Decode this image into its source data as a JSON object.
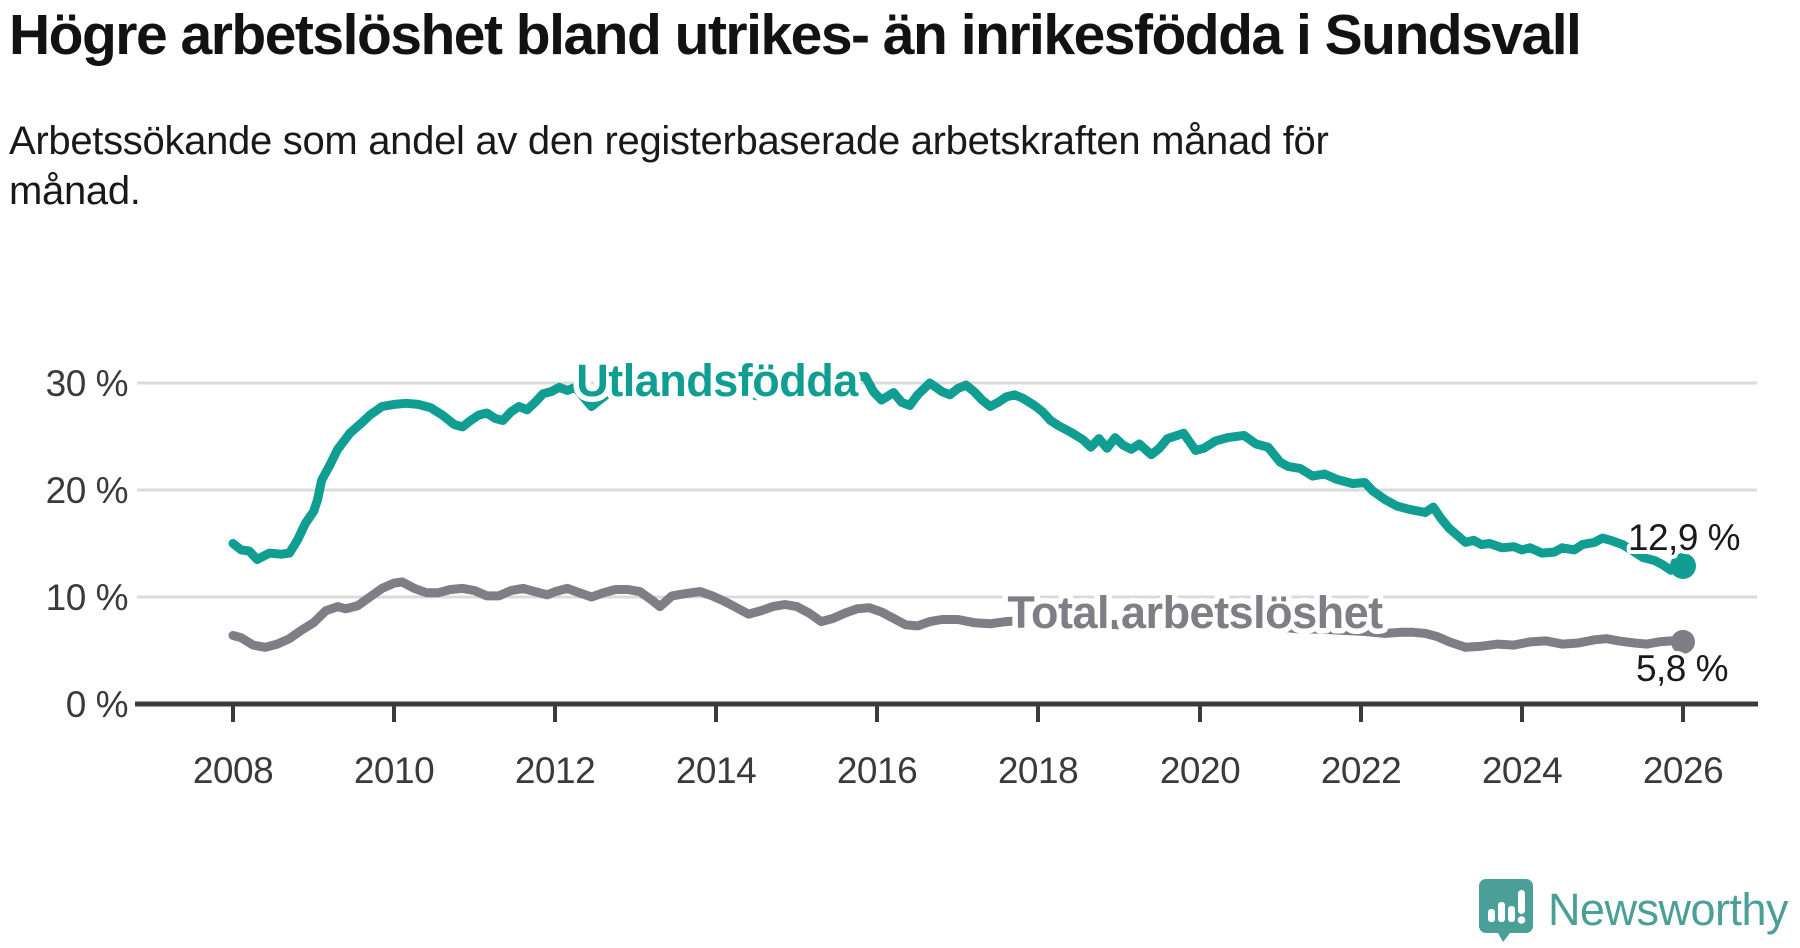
{
  "title": "Högre arbetslöshet bland utrikes- än inrikesfödda i Sundsvall",
  "subtitle": "Arbetssökande som andel av den registerbaserade arbetskraften månad för månad.",
  "branding": {
    "logo_text": "Newsworthy",
    "logo_icon": "speech-bubble-bar-chart-icon",
    "logo_color": "#4aa098"
  },
  "chart_data": {
    "type": "line",
    "title": "",
    "xlabel": "",
    "ylabel": "",
    "grid": "horizontal-only",
    "background": "#ffffff",
    "gridline_color": "#dbdbdb",
    "axis_color": "#3b3b3b",
    "xlim": [
      2006.8,
      2026.9
    ],
    "ylim": [
      0,
      33
    ],
    "x_ticks": [
      "2008",
      "2010",
      "2012",
      "2014",
      "2016",
      "2018",
      "2020",
      "2022",
      "2024",
      "2026"
    ],
    "x_tick_values": [
      2008,
      2010,
      2012,
      2014,
      2016,
      2018,
      2020,
      2022,
      2024,
      2026
    ],
    "y_ticks": [
      {
        "value": 0,
        "label": "0 %"
      },
      {
        "value": 10,
        "label": "10 %"
      },
      {
        "value": 20,
        "label": "20 %"
      },
      {
        "value": 30,
        "label": "30 %"
      }
    ],
    "unit": "%",
    "series": [
      {
        "name": "Utlandsfödda",
        "color": "#109d92",
        "end_value": 12.9,
        "end_label": "12,9 %",
        "points": [
          [
            2008.0,
            15.0
          ],
          [
            2008.1,
            14.4
          ],
          [
            2008.2,
            14.3
          ],
          [
            2008.3,
            13.5
          ],
          [
            2008.45,
            14.1
          ],
          [
            2008.6,
            14.0
          ],
          [
            2008.7,
            14.1
          ],
          [
            2008.8,
            15.3
          ],
          [
            2008.9,
            16.9
          ],
          [
            2009.0,
            18.0
          ],
          [
            2009.05,
            19.1
          ],
          [
            2009.1,
            20.9
          ],
          [
            2009.2,
            22.3
          ],
          [
            2009.3,
            23.8
          ],
          [
            2009.45,
            25.3
          ],
          [
            2009.6,
            26.3
          ],
          [
            2009.7,
            27.0
          ],
          [
            2009.85,
            27.8
          ],
          [
            2010.0,
            28.0
          ],
          [
            2010.15,
            28.1
          ],
          [
            2010.3,
            28.0
          ],
          [
            2010.45,
            27.7
          ],
          [
            2010.6,
            27.0
          ],
          [
            2010.75,
            26.1
          ],
          [
            2010.85,
            25.9
          ],
          [
            2010.95,
            26.5
          ],
          [
            2011.05,
            27.0
          ],
          [
            2011.15,
            27.2
          ],
          [
            2011.25,
            26.7
          ],
          [
            2011.35,
            26.5
          ],
          [
            2011.45,
            27.3
          ],
          [
            2011.55,
            27.8
          ],
          [
            2011.65,
            27.5
          ],
          [
            2011.75,
            28.2
          ],
          [
            2011.85,
            29.0
          ],
          [
            2011.95,
            29.2
          ],
          [
            2012.05,
            29.6
          ],
          [
            2012.15,
            29.3
          ],
          [
            2012.25,
            29.6
          ],
          [
            2012.35,
            28.7
          ],
          [
            2012.45,
            27.8
          ],
          [
            2012.55,
            28.4
          ],
          [
            2012.7,
            29.3
          ],
          [
            2012.85,
            29.8
          ],
          [
            2013.0,
            29.5
          ],
          [
            2013.15,
            29.9
          ],
          [
            2013.3,
            30.3
          ],
          [
            2013.45,
            29.8
          ],
          [
            2013.6,
            29.3
          ],
          [
            2013.75,
            29.0
          ],
          [
            2013.9,
            29.4
          ],
          [
            2014.05,
            29.7
          ],
          [
            2014.2,
            29.5
          ],
          [
            2014.35,
            29.1
          ],
          [
            2014.5,
            28.8
          ],
          [
            2014.65,
            29.3
          ],
          [
            2014.8,
            29.8
          ],
          [
            2014.95,
            29.5
          ],
          [
            2015.1,
            29.9
          ],
          [
            2015.25,
            30.1
          ],
          [
            2015.4,
            30.3
          ],
          [
            2015.55,
            30.5
          ],
          [
            2015.7,
            30.6
          ],
          [
            2015.85,
            30.6
          ],
          [
            2015.95,
            29.2
          ],
          [
            2016.05,
            28.4
          ],
          [
            2016.2,
            29.1
          ],
          [
            2016.3,
            28.2
          ],
          [
            2016.4,
            27.9
          ],
          [
            2016.5,
            28.9
          ],
          [
            2016.65,
            30.0
          ],
          [
            2016.8,
            29.2
          ],
          [
            2016.9,
            28.9
          ],
          [
            2017.0,
            29.5
          ],
          [
            2017.1,
            29.8
          ],
          [
            2017.2,
            29.2
          ],
          [
            2017.3,
            28.4
          ],
          [
            2017.4,
            27.8
          ],
          [
            2017.5,
            28.2
          ],
          [
            2017.6,
            28.7
          ],
          [
            2017.7,
            28.9
          ],
          [
            2017.8,
            28.6
          ],
          [
            2017.95,
            27.9
          ],
          [
            2018.05,
            27.3
          ],
          [
            2018.15,
            26.5
          ],
          [
            2018.25,
            26.0
          ],
          [
            2018.4,
            25.4
          ],
          [
            2018.55,
            24.7
          ],
          [
            2018.65,
            24.0
          ],
          [
            2018.75,
            24.8
          ],
          [
            2018.85,
            23.9
          ],
          [
            2018.95,
            24.9
          ],
          [
            2019.05,
            24.2
          ],
          [
            2019.15,
            23.8
          ],
          [
            2019.25,
            24.3
          ],
          [
            2019.4,
            23.3
          ],
          [
            2019.5,
            23.9
          ],
          [
            2019.6,
            24.8
          ],
          [
            2019.8,
            25.3
          ],
          [
            2019.95,
            23.7
          ],
          [
            2020.05,
            23.9
          ],
          [
            2020.2,
            24.6
          ],
          [
            2020.35,
            24.9
          ],
          [
            2020.55,
            25.1
          ],
          [
            2020.7,
            24.3
          ],
          [
            2020.85,
            24.0
          ],
          [
            2021.0,
            22.6
          ],
          [
            2021.1,
            22.2
          ],
          [
            2021.25,
            22.0
          ],
          [
            2021.4,
            21.3
          ],
          [
            2021.55,
            21.5
          ],
          [
            2021.7,
            21.0
          ],
          [
            2021.9,
            20.6
          ],
          [
            2022.05,
            20.7
          ],
          [
            2022.15,
            19.9
          ],
          [
            2022.3,
            19.1
          ],
          [
            2022.45,
            18.5
          ],
          [
            2022.6,
            18.2
          ],
          [
            2022.8,
            17.9
          ],
          [
            2022.9,
            18.4
          ],
          [
            2023.0,
            17.3
          ],
          [
            2023.1,
            16.4
          ],
          [
            2023.3,
            15.1
          ],
          [
            2023.4,
            15.3
          ],
          [
            2023.5,
            14.9
          ],
          [
            2023.6,
            15.0
          ],
          [
            2023.75,
            14.6
          ],
          [
            2023.9,
            14.7
          ],
          [
            2024.0,
            14.4
          ],
          [
            2024.1,
            14.6
          ],
          [
            2024.25,
            14.1
          ],
          [
            2024.4,
            14.2
          ],
          [
            2024.5,
            14.6
          ],
          [
            2024.65,
            14.4
          ],
          [
            2024.75,
            14.9
          ],
          [
            2024.9,
            15.1
          ],
          [
            2025.0,
            15.5
          ],
          [
            2025.1,
            15.3
          ],
          [
            2025.25,
            14.9
          ],
          [
            2025.4,
            14.2
          ],
          [
            2025.5,
            13.7
          ],
          [
            2025.65,
            13.4
          ],
          [
            2025.75,
            13.0
          ],
          [
            2025.85,
            12.5
          ],
          [
            2026.0,
            12.9
          ]
        ]
      },
      {
        "name": "Total arbetslöshet",
        "color": "#7e7e84",
        "end_value": 5.8,
        "end_label": "5,8 %",
        "points": [
          [
            2008.0,
            6.4
          ],
          [
            2008.1,
            6.2
          ],
          [
            2008.25,
            5.5
          ],
          [
            2008.4,
            5.3
          ],
          [
            2008.55,
            5.6
          ],
          [
            2008.7,
            6.1
          ],
          [
            2008.85,
            6.9
          ],
          [
            2009.0,
            7.6
          ],
          [
            2009.15,
            8.7
          ],
          [
            2009.3,
            9.1
          ],
          [
            2009.4,
            8.9
          ],
          [
            2009.55,
            9.2
          ],
          [
            2009.7,
            10.0
          ],
          [
            2009.85,
            10.8
          ],
          [
            2010.0,
            11.3
          ],
          [
            2010.1,
            11.4
          ],
          [
            2010.25,
            10.8
          ],
          [
            2010.4,
            10.4
          ],
          [
            2010.55,
            10.4
          ],
          [
            2010.7,
            10.7
          ],
          [
            2010.85,
            10.8
          ],
          [
            2011.0,
            10.6
          ],
          [
            2011.15,
            10.1
          ],
          [
            2011.3,
            10.1
          ],
          [
            2011.45,
            10.6
          ],
          [
            2011.6,
            10.8
          ],
          [
            2011.75,
            10.5
          ],
          [
            2011.9,
            10.2
          ],
          [
            2012.0,
            10.5
          ],
          [
            2012.15,
            10.8
          ],
          [
            2012.3,
            10.4
          ],
          [
            2012.45,
            10.0
          ],
          [
            2012.6,
            10.4
          ],
          [
            2012.75,
            10.7
          ],
          [
            2012.9,
            10.7
          ],
          [
            2013.05,
            10.5
          ],
          [
            2013.2,
            9.7
          ],
          [
            2013.3,
            9.1
          ],
          [
            2013.45,
            10.1
          ],
          [
            2013.6,
            10.3
          ],
          [
            2013.8,
            10.5
          ],
          [
            2013.95,
            10.1
          ],
          [
            2014.1,
            9.6
          ],
          [
            2014.25,
            9.0
          ],
          [
            2014.4,
            8.4
          ],
          [
            2014.55,
            8.7
          ],
          [
            2014.7,
            9.1
          ],
          [
            2014.85,
            9.3
          ],
          [
            2015.0,
            9.1
          ],
          [
            2015.15,
            8.5
          ],
          [
            2015.3,
            7.7
          ],
          [
            2015.45,
            8.0
          ],
          [
            2015.6,
            8.5
          ],
          [
            2015.75,
            8.9
          ],
          [
            2015.9,
            9.0
          ],
          [
            2016.05,
            8.6
          ],
          [
            2016.2,
            8.0
          ],
          [
            2016.35,
            7.4
          ],
          [
            2016.5,
            7.3
          ],
          [
            2016.65,
            7.7
          ],
          [
            2016.8,
            7.9
          ],
          [
            2017.0,
            7.9
          ],
          [
            2017.2,
            7.6
          ],
          [
            2017.4,
            7.5
          ],
          [
            2017.6,
            7.7
          ],
          [
            2017.8,
            7.8
          ],
          [
            2018.0,
            7.6
          ],
          [
            2018.25,
            7.4
          ],
          [
            2018.5,
            7.3
          ],
          [
            2018.75,
            7.5
          ],
          [
            2019.0,
            7.4
          ],
          [
            2019.25,
            7.2
          ],
          [
            2019.5,
            7.3
          ],
          [
            2019.75,
            7.4
          ],
          [
            2020.0,
            7.6
          ],
          [
            2020.25,
            8.1
          ],
          [
            2020.4,
            7.9
          ],
          [
            2020.6,
            7.6
          ],
          [
            2020.8,
            7.3
          ],
          [
            2021.0,
            7.2
          ],
          [
            2021.25,
            7.0
          ],
          [
            2021.5,
            7.0
          ],
          [
            2021.75,
            6.9
          ],
          [
            2022.0,
            6.8
          ],
          [
            2022.15,
            6.7
          ],
          [
            2022.3,
            6.6
          ],
          [
            2022.5,
            6.7
          ],
          [
            2022.65,
            6.7
          ],
          [
            2022.8,
            6.6
          ],
          [
            2022.95,
            6.3
          ],
          [
            2023.1,
            5.8
          ],
          [
            2023.3,
            5.3
          ],
          [
            2023.5,
            5.4
          ],
          [
            2023.7,
            5.6
          ],
          [
            2023.9,
            5.5
          ],
          [
            2024.1,
            5.8
          ],
          [
            2024.3,
            5.9
          ],
          [
            2024.5,
            5.6
          ],
          [
            2024.7,
            5.7
          ],
          [
            2024.9,
            6.0
          ],
          [
            2025.05,
            6.1
          ],
          [
            2025.2,
            5.9
          ],
          [
            2025.4,
            5.7
          ],
          [
            2025.55,
            5.6
          ],
          [
            2025.7,
            5.8
          ],
          [
            2025.85,
            5.9
          ],
          [
            2026.0,
            5.8
          ]
        ]
      }
    ]
  }
}
